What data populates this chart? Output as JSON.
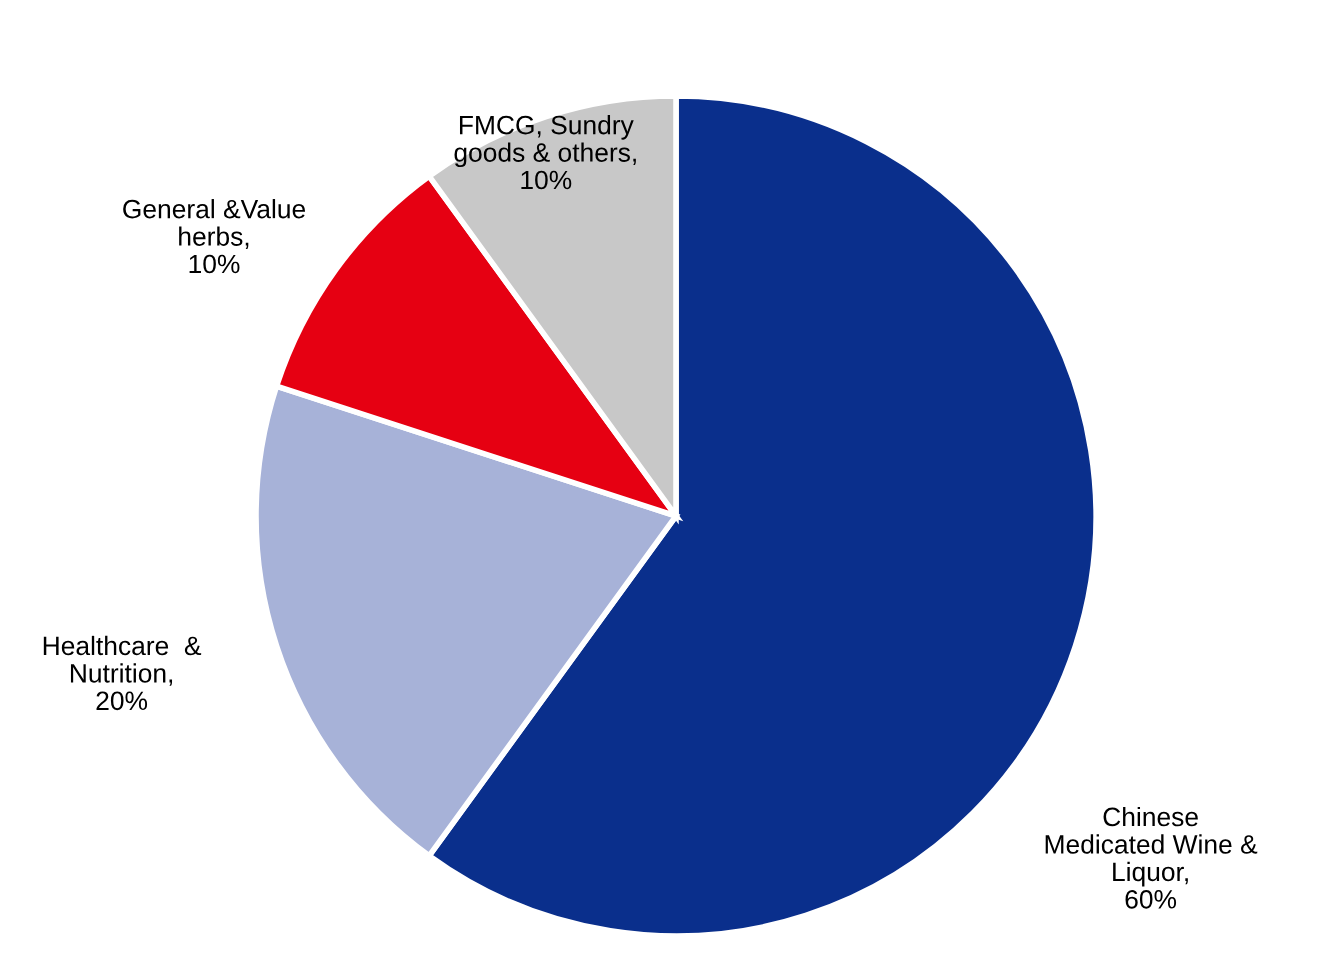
{
  "chart_data": {
    "type": "pie",
    "categories": [
      "Chinese\nMedicated Wine &\nLiquor",
      "Healthcare  &\nNutrition",
      "General &Value\nherbs",
      "FMCG, Sundry\ngoods & others"
    ],
    "values": [
      60,
      20,
      10,
      10
    ],
    "value_labels": [
      ",\n60%",
      ",\n20%",
      ",\n10%",
      ",\n10%"
    ],
    "colors": [
      "#0a2f8c",
      "#a7b2d8",
      "#e60012",
      "#c8c8c8"
    ],
    "legend": false
  }
}
